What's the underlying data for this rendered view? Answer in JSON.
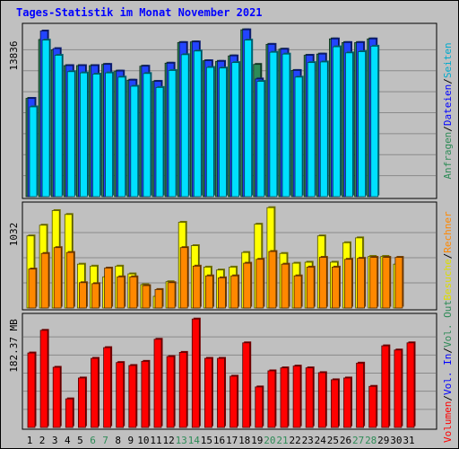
{
  "chart_data": {
    "type": "bar",
    "title": "Tages-Statistik im Monat November 2021",
    "days": [
      "1",
      "2",
      "3",
      "4",
      "5",
      "6",
      "7",
      "8",
      "9",
      "10",
      "11",
      "12",
      "13",
      "14",
      "15",
      "16",
      "17",
      "18",
      "19",
      "20",
      "21",
      "22",
      "23",
      "24",
      "25",
      "26",
      "27",
      "28",
      "29",
      "30",
      "31"
    ],
    "weekend_days": [
      "6",
      "7",
      "13",
      "14",
      "20",
      "21",
      "27",
      "28"
    ],
    "panels": [
      {
        "id": "top",
        "ymax_label": "13836",
        "ymax": 13836,
        "legend": [
          {
            "text": "Anfragen",
            "color": "#2e8b57"
          },
          {
            "text": "/",
            "color": "#000000"
          },
          {
            "text": "Dateien",
            "color": "#0000ff"
          },
          {
            "text": "/",
            "color": "#000000"
          },
          {
            "text": "Seiten",
            "color": "#00aacc"
          }
        ],
        "series": [
          {
            "name": "Anfragen",
            "color": "#2e8b57",
            "values": [
              8100,
              12950,
              12100,
              10800,
              10800,
              10800,
              10900,
              10350,
              9600,
              10750,
              9500,
              11000,
              12700,
              12750,
              11200,
              11150,
              11600,
              13750,
              10900,
              12550,
              12150,
              10400,
              11650,
              11750,
              13000,
              12700,
              12700,
              13000,
              null,
              null,
              null
            ]
          },
          {
            "name": "Dateien",
            "color": "#2244ff",
            "values": [
              8100,
              13650,
              12200,
              10800,
              10800,
              10800,
              10900,
              10350,
              9600,
              10750,
              9500,
              11000,
              12700,
              12750,
              11200,
              11150,
              11600,
              13750,
              9700,
              12550,
              12150,
              10400,
              11650,
              11750,
              13000,
              12700,
              12700,
              13000,
              null,
              null,
              null
            ]
          },
          {
            "name": "Seiten",
            "color": "#00e0ff",
            "values": [
              7400,
              12900,
              11650,
              10300,
              10200,
              10100,
              10200,
              9850,
              9100,
              10150,
              9000,
              10400,
              11700,
              12000,
              10650,
              10600,
              11050,
              12900,
              9500,
              11900,
              11750,
              9850,
              11050,
              11100,
              12350,
              11850,
              11950,
              12400,
              null,
              null,
              null
            ]
          }
        ]
      },
      {
        "id": "middle",
        "ymax_label": "1032",
        "ymax": 1032,
        "legend": [
          {
            "text": "Besuche",
            "color": "#dddd00"
          },
          {
            "text": "/",
            "color": "#000000"
          },
          {
            "text": "Rechner",
            "color": "#ff8800"
          }
        ],
        "series": [
          {
            "name": "Besuche",
            "color": "#ffff00",
            "values": [
              740,
              850,
              1000,
              960,
              450,
              430,
              320,
              430,
              350,
              240,
              120,
              270,
              880,
              640,
              420,
              390,
              420,
              570,
              860,
              1030,
              560,
              460,
              470,
              740,
              470,
              670,
              720,
              530,
              530,
              450,
              null
            ]
          },
          {
            "name": "Rechner",
            "color": "#ff8800",
            "values": [
              400,
              560,
              620,
              570,
              260,
              250,
              410,
              320,
              320,
              230,
              190,
              260,
              620,
              430,
              330,
              310,
              330,
              460,
              500,
              580,
              450,
              330,
              420,
              520,
              420,
              500,
              510,
              520,
              520,
              520,
              null
            ]
          }
        ]
      },
      {
        "id": "bottom",
        "ymax_label": "182.37 MB",
        "ymax": 182.37,
        "legend": [
          {
            "text": "Volumen",
            "color": "#ff0000"
          },
          {
            "text": "/",
            "color": "#000000"
          },
          {
            "text": "Vol. In",
            "color": "#0000ff"
          },
          {
            "text": "/",
            "color": "#000000"
          },
          {
            "text": "Vol. Out",
            "color": "#2e8b57"
          }
        ],
        "series": [
          {
            "name": "Volumen",
            "color": "#ff0000",
            "values": [
              125,
              163,
              101,
              48,
              83,
              116,
              134,
              109,
              104,
              111,
              148,
              119,
              126,
              182,
              116,
              116,
              86,
              142,
              68,
              95,
              100,
              103,
              100,
              92,
              80,
              83,
              108,
              69,
              137,
              130,
              142
            ]
          }
        ]
      }
    ]
  }
}
